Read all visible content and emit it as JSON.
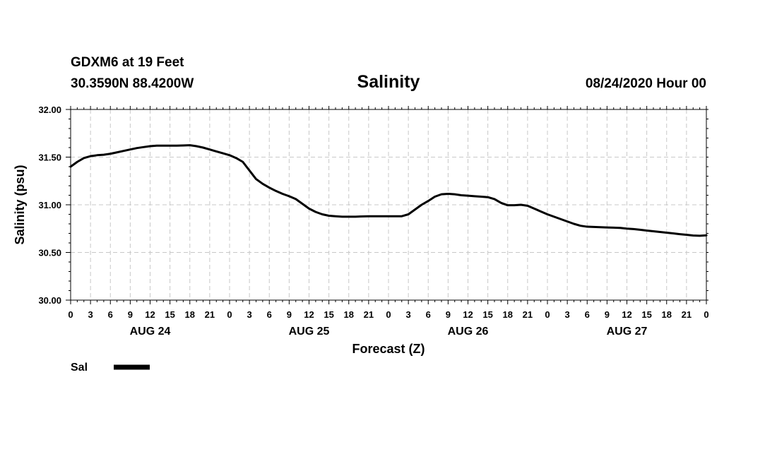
{
  "header": {
    "station": "GDXM6 at 19 Feet",
    "coords": "30.3590N 88.4200W",
    "title": "Salinity",
    "issued": "08/24/2020 Hour 00"
  },
  "chart_data": {
    "type": "line",
    "title": "Salinity",
    "xlabel": "Forecast (Z)",
    "ylabel": "Salinity (psu)",
    "xlim": [
      0,
      96
    ],
    "ylim": [
      30.0,
      32.0
    ],
    "x_major_step_hours": 3,
    "yticks": [
      "30.00",
      "30.50",
      "31.00",
      "31.50",
      "32.00"
    ],
    "xtick_labels": [
      "0",
      "3",
      "6",
      "9",
      "12",
      "15",
      "18",
      "21",
      "0",
      "3",
      "6",
      "9",
      "12",
      "15",
      "18",
      "21",
      "0",
      "3",
      "6",
      "9",
      "12",
      "15",
      "18",
      "21",
      "0",
      "3",
      "6",
      "9",
      "12",
      "15",
      "18",
      "21",
      "0"
    ],
    "date_labels": [
      {
        "text": "AUG 24",
        "hour": 12
      },
      {
        "text": "AUG 25",
        "hour": 36
      },
      {
        "text": "AUG 26",
        "hour": 60
      },
      {
        "text": "AUG 27",
        "hour": 84
      }
    ],
    "grid": true,
    "legend": {
      "position": "bottom-left",
      "label": "Sal"
    },
    "series": [
      {
        "name": "Sal",
        "color": "#000000",
        "x": [
          0,
          1,
          2,
          3,
          4,
          5,
          6,
          7,
          8,
          9,
          10,
          11,
          12,
          13,
          14,
          15,
          16,
          17,
          18,
          19,
          20,
          21,
          22,
          23,
          24,
          25,
          26,
          27,
          28,
          29,
          30,
          31,
          32,
          33,
          34,
          35,
          36,
          37,
          38,
          39,
          40,
          41,
          42,
          43,
          44,
          45,
          46,
          47,
          48,
          49,
          50,
          51,
          52,
          53,
          54,
          55,
          56,
          57,
          58,
          59,
          60,
          61,
          62,
          63,
          64,
          65,
          66,
          67,
          68,
          69,
          70,
          71,
          72,
          73,
          74,
          75,
          76,
          77,
          78,
          79,
          80,
          81,
          82,
          83,
          84,
          85,
          86,
          87,
          88,
          89,
          90,
          91,
          92,
          93,
          94,
          95,
          96
        ],
        "values": [
          31.4,
          31.45,
          31.49,
          31.51,
          31.52,
          31.525,
          31.535,
          31.55,
          31.565,
          31.58,
          31.595,
          31.605,
          31.615,
          31.62,
          31.62,
          31.62,
          31.62,
          31.622,
          31.625,
          31.615,
          31.6,
          31.58,
          31.56,
          31.54,
          31.52,
          31.49,
          31.45,
          31.36,
          31.27,
          31.22,
          31.18,
          31.145,
          31.115,
          31.09,
          31.06,
          31.01,
          30.96,
          30.925,
          30.9,
          30.885,
          30.88,
          30.875,
          30.875,
          30.875,
          30.878,
          30.88,
          30.88,
          30.88,
          30.88,
          30.88,
          30.88,
          30.9,
          30.95,
          31.0,
          31.04,
          31.085,
          31.11,
          31.115,
          31.11,
          31.1,
          31.095,
          31.09,
          31.085,
          31.08,
          31.06,
          31.02,
          30.995,
          30.995,
          31.0,
          30.99,
          30.96,
          30.93,
          30.9,
          30.875,
          30.85,
          30.825,
          30.8,
          30.78,
          30.77,
          30.768,
          30.765,
          30.762,
          30.76,
          30.757,
          30.75,
          30.745,
          30.738,
          30.73,
          30.722,
          30.715,
          30.707,
          30.7,
          30.692,
          30.685,
          30.678,
          30.675,
          30.68
        ]
      }
    ]
  }
}
